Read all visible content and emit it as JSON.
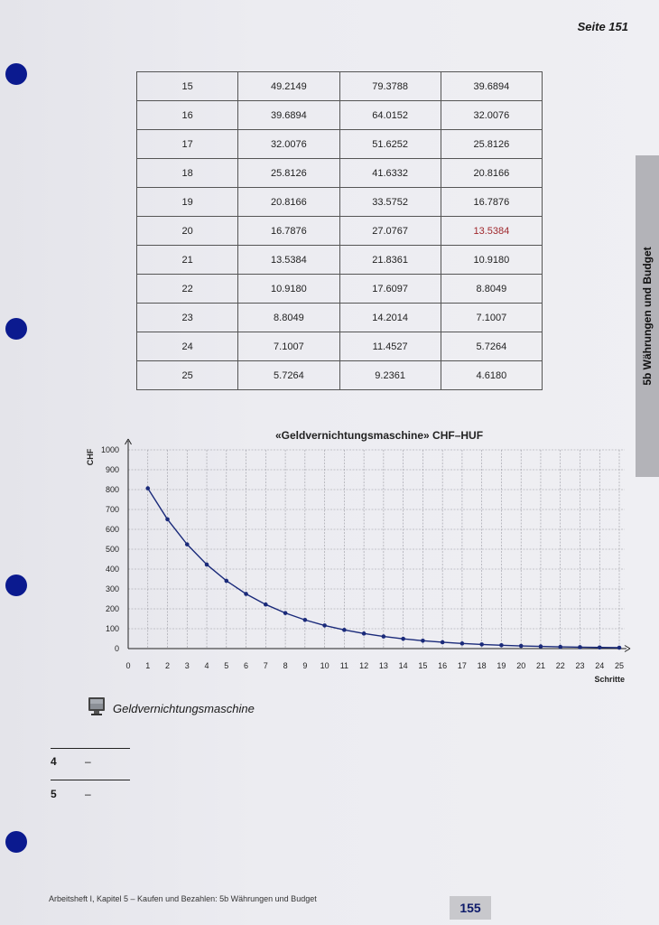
{
  "header": {
    "page_label": "Seite 151"
  },
  "table": {
    "rows": [
      [
        "15",
        "49.2149",
        "79.3788",
        "39.6894"
      ],
      [
        "16",
        "39.6894",
        "64.0152",
        "32.0076"
      ],
      [
        "17",
        "32.0076",
        "51.6252",
        "25.8126"
      ],
      [
        "18",
        "25.8126",
        "41.6332",
        "20.8166"
      ],
      [
        "19",
        "20.8166",
        "33.5752",
        "16.7876"
      ],
      [
        "20",
        "16.7876",
        "27.0767",
        "13.5384"
      ],
      [
        "21",
        "13.5384",
        "21.8361",
        "10.9180"
      ],
      [
        "22",
        "10.9180",
        "17.6097",
        "8.8049"
      ],
      [
        "23",
        "8.8049",
        "14.2014",
        "7.1007"
      ],
      [
        "24",
        "7.1007",
        "11.4527",
        "5.7264"
      ],
      [
        "25",
        "5.7264",
        "9.2361",
        "4.6180"
      ]
    ],
    "highlight_color": "#a0282c"
  },
  "side_tab": {
    "label": "5b Währungen und Budget"
  },
  "chart_data": {
    "type": "line",
    "title": "«Geldvernichtungsmaschine» CHF–HUF",
    "xlabel": "Schritte",
    "ylabel": "CHF",
    "xlim": [
      0,
      25
    ],
    "ylim": [
      0,
      1000
    ],
    "x_ticks": [
      "0",
      "1",
      "2",
      "3",
      "4",
      "5",
      "6",
      "7",
      "8",
      "9",
      "10",
      "11",
      "12",
      "13",
      "14",
      "15",
      "16",
      "17",
      "18",
      "19",
      "20",
      "21",
      "22",
      "23",
      "24",
      "25"
    ],
    "y_ticks": [
      "0",
      "100",
      "200",
      "300",
      "400",
      "500",
      "600",
      "700",
      "800",
      "900",
      "1000"
    ],
    "grid": true,
    "x": [
      1,
      2,
      3,
      4,
      5,
      6,
      7,
      8,
      9,
      10,
      11,
      12,
      13,
      14,
      15,
      16,
      17,
      18,
      19,
      20,
      21,
      22,
      23,
      24,
      25
    ],
    "values": [
      806.4,
      650.3,
      524.4,
      422.9,
      341.1,
      275.1,
      221.8,
      178.9,
      144.3,
      116.4,
      93.9,
      75.7,
      61.0,
      49.2,
      39.7,
      32.0,
      25.8,
      20.8,
      16.8,
      13.5,
      10.9,
      8.8,
      7.1,
      5.7,
      4.6
    ],
    "line_color": "#1a2a7a"
  },
  "tool": {
    "label": "Geldvernichtungsmaschine",
    "icon": "computer-monitor-icon"
  },
  "tasks": [
    {
      "number": "4",
      "text": "–"
    },
    {
      "number": "5",
      "text": "–"
    }
  ],
  "footer": {
    "text": "Arbeitsheft I, Kapitel 5 – Kaufen und Bezahlen: 5b Währungen und Budget",
    "page_number": "155"
  }
}
